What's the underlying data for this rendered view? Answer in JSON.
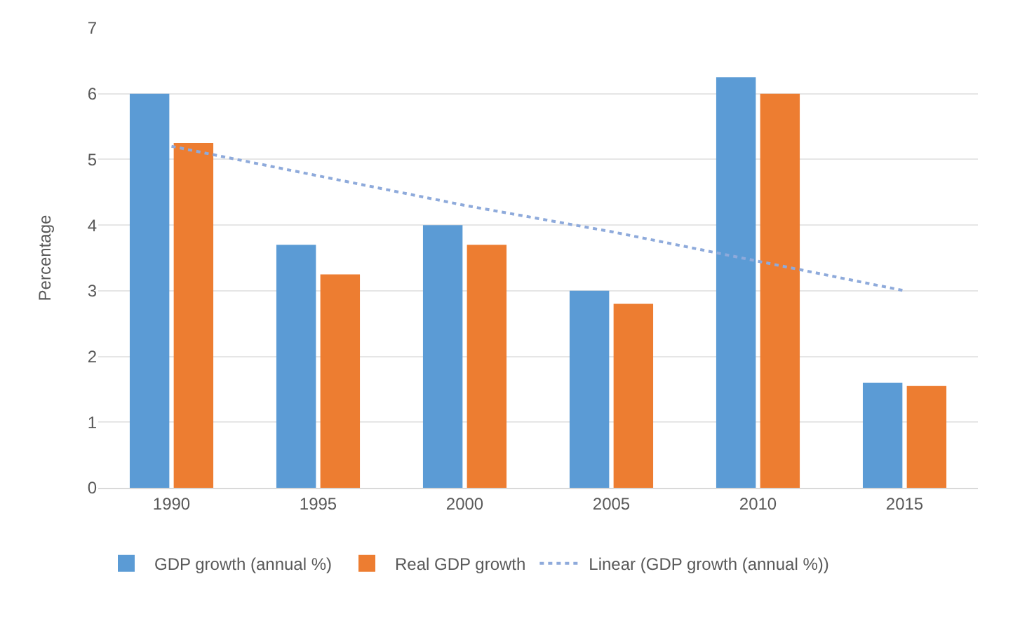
{
  "chart_data": {
    "type": "bar",
    "ylabel": "Percentage",
    "categories": [
      "1990",
      "1995",
      "2000",
      "2005",
      "2010",
      "2015"
    ],
    "series": [
      {
        "name": "GDP growth (annual %)",
        "color": "#5b9bd5",
        "values": [
          6.0,
          3.7,
          4.0,
          3.0,
          6.25,
          1.6
        ]
      },
      {
        "name": "Real GDP growth",
        "color": "#ed7d31",
        "values": [
          5.25,
          3.25,
          3.7,
          2.8,
          6.0,
          1.55
        ]
      },
      {
        "name": "Linear (GDP growth (annual %))",
        "type": "line",
        "line_style": "dotted",
        "marker": "none",
        "color": "#8eaadb",
        "values": [
          5.2,
          4.75,
          4.3,
          3.9,
          3.45,
          3.0
        ]
      }
    ],
    "ylim": [
      0,
      7
    ],
    "yticks": [
      0,
      1,
      2,
      3,
      4,
      5,
      6,
      7
    ],
    "grid": "y",
    "legend": "bottom"
  }
}
